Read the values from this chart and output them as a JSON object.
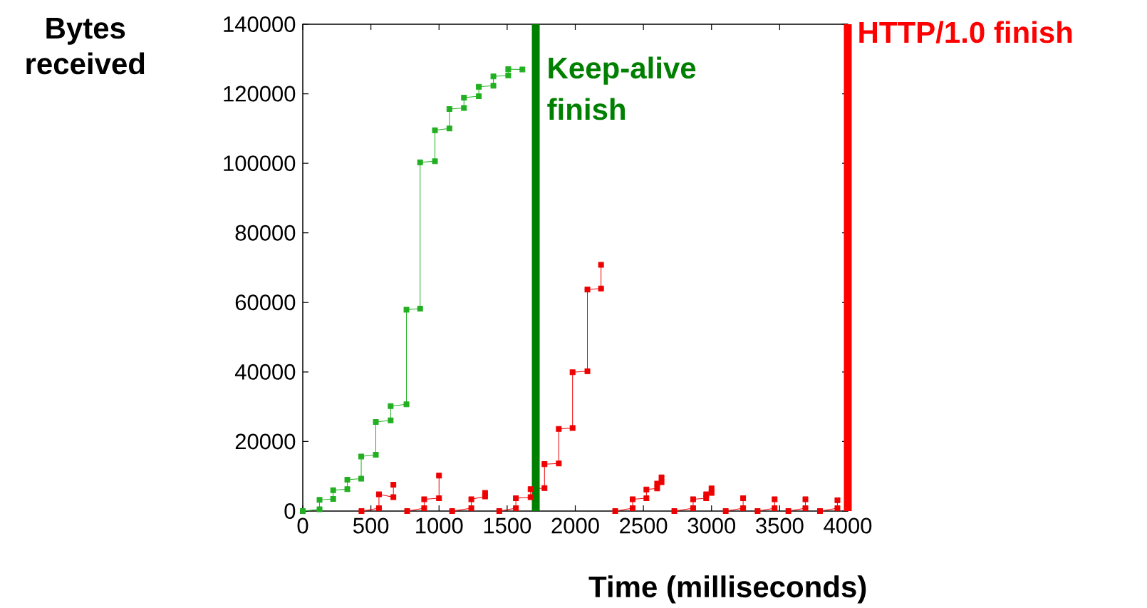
{
  "chart_data": {
    "type": "line",
    "xlabel": "Time (milliseconds)",
    "ylabel": "Bytes received",
    "xlim": [
      0,
      4000
    ],
    "xticks": [
      0,
      500,
      1000,
      1500,
      2000,
      2500,
      3000,
      3500,
      4000
    ],
    "ylim": [
      0,
      140000
    ],
    "yticks": [
      0,
      20000,
      40000,
      60000,
      80000,
      100000,
      120000,
      140000
    ],
    "grid": false,
    "marker": "square",
    "line_style": "solid",
    "series": [
      {
        "color": "#22b022",
        "x": [
          0,
          123,
          123,
          223,
          223,
          327,
          327,
          429,
          429,
          536,
          536,
          645,
          645,
          761,
          761,
          861,
          861,
          970,
          970,
          1076,
          1076,
          1183,
          1183,
          1292,
          1292,
          1399,
          1399,
          1508,
          1508,
          1612
        ],
        "values": [
          0,
          500,
          3200,
          3500,
          6000,
          6300,
          9000,
          9300,
          15700,
          16200,
          25600,
          26100,
          30200,
          30700,
          57900,
          58200,
          100300,
          100600,
          109500,
          110000,
          115600,
          115900,
          118900,
          119300,
          122000,
          122300,
          125000,
          125300,
          127100,
          127000
        ]
      },
      {
        "color": "#ee0000",
        "x": [
          431,
          559,
          559,
          665,
          665
        ],
        "values": [
          0,
          800,
          4800,
          4000,
          7600
        ]
      },
      {
        "color": "#ee0000",
        "x": [
          766,
          891,
          891,
          1000,
          1000
        ],
        "values": [
          0,
          800,
          3400,
          3700,
          10200
        ]
      },
      {
        "color": "#ee0000",
        "x": [
          1096,
          1237,
          1237,
          1338,
          1338
        ],
        "values": [
          0,
          800,
          3400,
          4200,
          5200
        ]
      },
      {
        "color": "#ee0000",
        "x": [
          1442,
          1564,
          1564,
          1672,
          1672,
          1774,
          1774,
          1879,
          1879,
          1980,
          1980,
          2089,
          2089,
          2189,
          2189
        ],
        "values": [
          0,
          800,
          3700,
          4000,
          6300,
          6600,
          13500,
          13700,
          23600,
          23900,
          39900,
          40200,
          63700,
          64000,
          70800
        ]
      },
      {
        "color": "#ee0000",
        "x": [
          2293,
          2421,
          2421,
          2522,
          2522,
          2601,
          2601,
          2633,
          2633
        ],
        "values": [
          0,
          800,
          3400,
          3700,
          6200,
          6500,
          7900,
          8300,
          9700
        ]
      },
      {
        "color": "#ee0000",
        "x": [
          2727,
          2865,
          2865,
          2961,
          2961,
          3000,
          3000
        ],
        "values": [
          0,
          800,
          3400,
          3700,
          4800,
          5200,
          6500
        ]
      },
      {
        "color": "#ee0000",
        "x": [
          3104,
          3232,
          3232
        ],
        "values": [
          0,
          800,
          3700
        ]
      },
      {
        "color": "#ee0000",
        "x": [
          3338,
          3463,
          3463
        ],
        "values": [
          0,
          800,
          3400
        ]
      },
      {
        "color": "#ee0000",
        "x": [
          3564,
          3689,
          3689
        ],
        "values": [
          0,
          800,
          3400
        ]
      },
      {
        "color": "#ee0000",
        "x": [
          3796,
          3924,
          3924
        ],
        "values": [
          0,
          800,
          3100
        ]
      }
    ],
    "ref_lines": [
      {
        "axis": "x",
        "value": 1710,
        "label": "Keep-alive finish",
        "color": "#008000"
      },
      {
        "axis": "x",
        "value": 4000,
        "label": "HTTP/1.0 finish",
        "color": "#ff0000"
      }
    ]
  }
}
